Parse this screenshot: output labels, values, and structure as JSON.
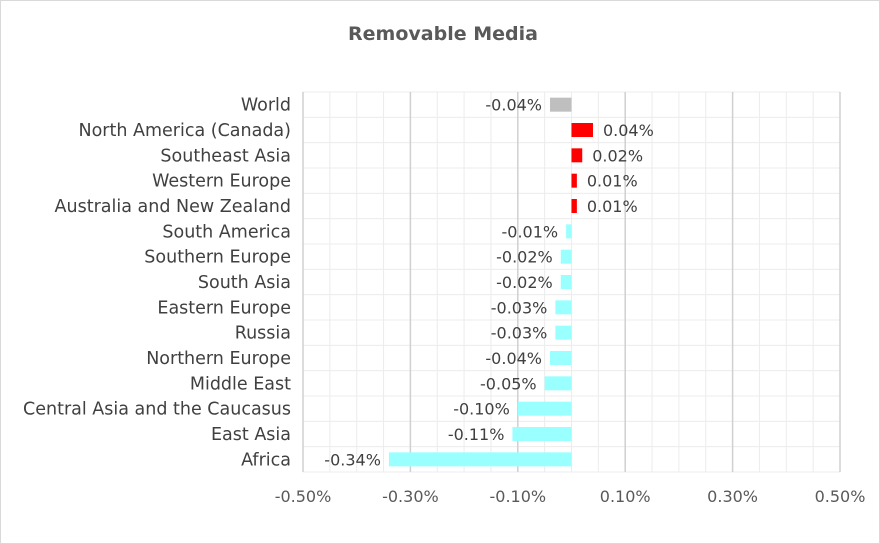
{
  "chart_data": {
    "type": "bar",
    "orientation": "horizontal",
    "title": "Removable Media",
    "xlabel": "",
    "ylabel": "",
    "xlim": [
      -0.5,
      0.5
    ],
    "x_ticks": [
      -0.5,
      -0.3,
      -0.1,
      0.1,
      0.3,
      0.5
    ],
    "x_tick_labels": [
      "-0.50%",
      "-0.30%",
      "-0.10%",
      "0.10%",
      "0.30%",
      "0.50%"
    ],
    "grid": true,
    "legend": "none",
    "colors": {
      "world": "#bfbfbf",
      "positive": "#ff0000",
      "negative": "#99ffff"
    },
    "categories": [
      "World",
      "North America (Canada)",
      "Southeast Asia",
      "Western Europe",
      "Australia and New Zealand",
      "South America",
      "Southern Europe",
      "South Asia",
      "Eastern Europe",
      "Russia",
      "Northern Europe",
      "Middle East",
      "Central Asia and the Caucasus",
      "East Asia",
      "Africa"
    ],
    "values": [
      -0.04,
      0.04,
      0.02,
      0.01,
      0.01,
      -0.01,
      -0.02,
      -0.02,
      -0.03,
      -0.03,
      -0.04,
      -0.05,
      -0.1,
      -0.11,
      -0.34
    ],
    "data_labels": [
      "-0.04%",
      "0.04%",
      "0.02%",
      "0.01%",
      "0.01%",
      "-0.01%",
      "-0.02%",
      "-0.02%",
      "-0.03%",
      "-0.03%",
      "-0.04%",
      "-0.05%",
      "-0.10%",
      "-0.11%",
      "-0.34%"
    ]
  }
}
